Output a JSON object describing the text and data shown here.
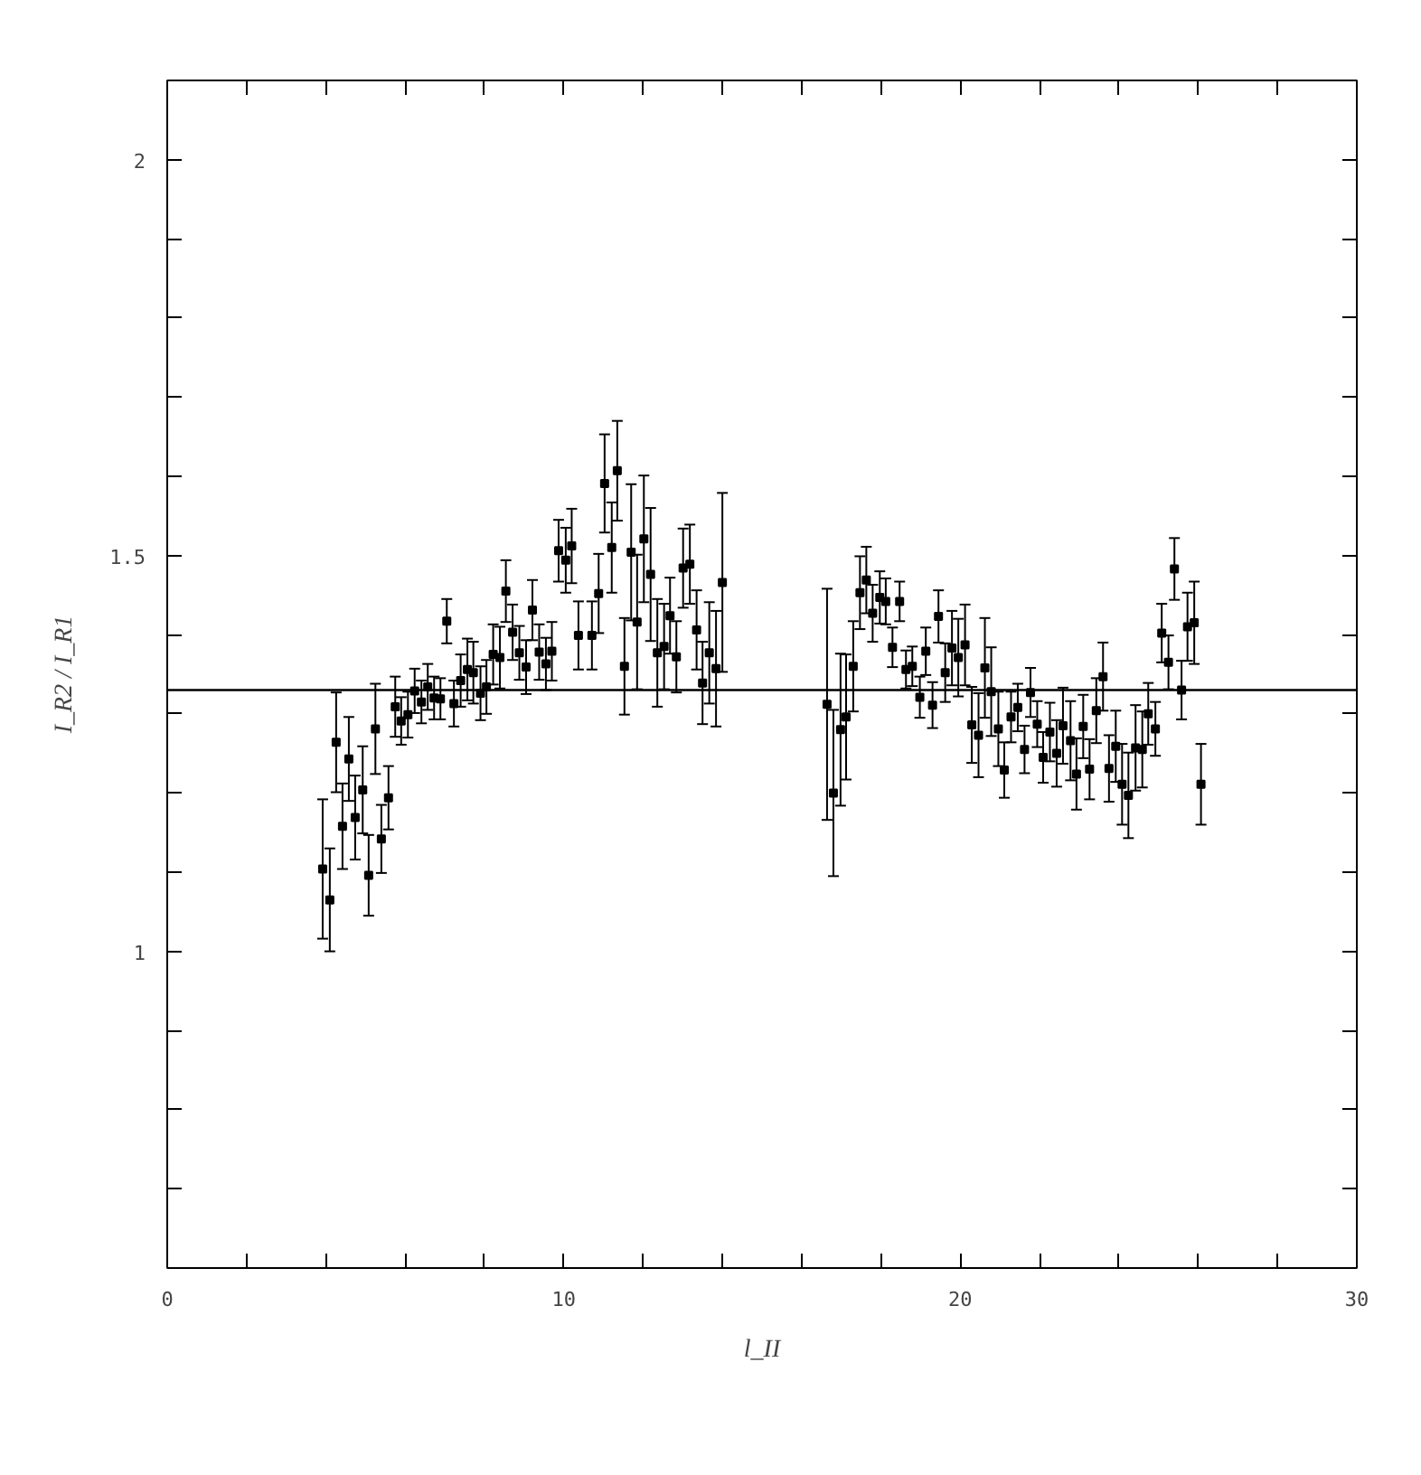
{
  "chart_data": {
    "type": "scatter",
    "xlabel": "l_II",
    "ylabel": "I_R2 / I_R1",
    "marker": "square",
    "grid": false,
    "color": "#000000",
    "xlim": [
      0,
      30
    ],
    "ylim": [
      0.6,
      2.1
    ],
    "xticks": [
      0,
      {
        "value": 2,
        "label": null
      },
      {
        "value": 4,
        "label": null
      },
      {
        "value": 6,
        "label": null
      },
      {
        "value": 8,
        "label": null
      },
      10,
      {
        "value": 12,
        "label": null
      },
      {
        "value": 14,
        "label": null
      },
      {
        "value": 16,
        "label": null
      },
      {
        "value": 18,
        "label": null
      },
      20,
      {
        "value": 22,
        "label": null
      },
      {
        "value": 24,
        "label": null
      },
      {
        "value": 26,
        "label": null
      },
      {
        "value": 28,
        "label": null
      },
      30
    ],
    "yticks": [
      {
        "value": 0.7,
        "label": null
      },
      {
        "value": 0.8,
        "label": null
      },
      {
        "value": 0.9,
        "label": null
      },
      1,
      {
        "value": 1.1,
        "label": null
      },
      {
        "value": 1.2,
        "label": null
      },
      {
        "value": 1.3,
        "label": null
      },
      {
        "value": 1.4,
        "label": null
      },
      1.5,
      {
        "value": 1.6,
        "label": null
      },
      {
        "value": 1.7,
        "label": null
      },
      {
        "value": 1.8,
        "label": null
      },
      {
        "value": 1.9,
        "label": null
      },
      2
    ],
    "ref_lines": [
      {
        "axis": "y",
        "value": 1.33,
        "color": "#000000"
      }
    ],
    "x": [
      3.92,
      4.1,
      4.26,
      4.42,
      4.58,
      4.74,
      4.93,
      5.08,
      5.25,
      5.4,
      5.58,
      5.75,
      5.9,
      6.07,
      6.24,
      6.41,
      6.57,
      6.73,
      6.89,
      7.05,
      7.23,
      7.4,
      7.57,
      7.72,
      7.9,
      8.05,
      8.22,
      8.39,
      8.54,
      8.71,
      8.88,
      9.05,
      9.21,
      9.38,
      9.55,
      9.7,
      9.87,
      10.05,
      10.2,
      10.37,
      10.71,
      10.88,
      11.03,
      11.21,
      11.35,
      11.53,
      11.7,
      11.85,
      12.02,
      12.19,
      12.36,
      12.53,
      12.68,
      12.84,
      13.01,
      13.18,
      13.35,
      13.5,
      13.67,
      13.84,
      14.0,
      16.64,
      16.8,
      16.98,
      17.12,
      17.3,
      17.47,
      17.63,
      17.79,
      17.97,
      18.12,
      18.29,
      18.47,
      18.63,
      18.79,
      18.98,
      19.13,
      19.3,
      19.45,
      19.62,
      19.79,
      19.95,
      20.12,
      20.29,
      20.46,
      20.62,
      20.78,
      20.96,
      21.11,
      21.28,
      21.45,
      21.62,
      21.77,
      21.94,
      22.09,
      22.26,
      22.43,
      22.59,
      22.78,
      22.93,
      23.1,
      23.26,
      23.43,
      23.6,
      23.75,
      23.92,
      24.08,
      24.24,
      24.42,
      24.59,
      24.74,
      24.92,
      25.08,
      25.25,
      25.4,
      25.58,
      25.73,
      25.9,
      26.07
    ],
    "values": [
      1.104,
      1.065,
      1.264,
      1.158,
      1.243,
      1.169,
      1.204,
      1.096,
      1.281,
      1.142,
      1.194,
      1.309,
      1.291,
      1.299,
      1.329,
      1.315,
      1.334,
      1.32,
      1.319,
      1.417,
      1.313,
      1.342,
      1.356,
      1.352,
      1.326,
      1.334,
      1.375,
      1.371,
      1.455,
      1.403,
      1.377,
      1.359,
      1.431,
      1.378,
      1.363,
      1.379,
      1.506,
      1.494,
      1.512,
      1.399,
      1.399,
      1.452,
      1.591,
      1.51,
      1.607,
      1.36,
      1.504,
      1.416,
      1.521,
      1.476,
      1.377,
      1.385,
      1.424,
      1.372,
      1.484,
      1.489,
      1.406,
      1.339,
      1.377,
      1.357,
      1.466,
      1.312,
      1.2,
      1.28,
      1.296,
      1.36,
      1.453,
      1.469,
      1.427,
      1.447,
      1.442,
      1.384,
      1.442,
      1.356,
      1.36,
      1.321,
      1.379,
      1.311,
      1.423,
      1.352,
      1.383,
      1.371,
      1.387,
      1.286,
      1.273,
      1.358,
      1.328,
      1.281,
      1.229,
      1.296,
      1.308,
      1.255,
      1.327,
      1.287,
      1.245,
      1.277,
      1.25,
      1.285,
      1.266,
      1.224,
      1.284,
      1.23,
      1.304,
      1.347,
      1.231,
      1.259,
      1.211,
      1.197,
      1.257,
      1.255,
      1.3,
      1.281,
      1.402,
      1.365,
      1.483,
      1.33,
      1.41,
      1.415,
      1.211
    ],
    "errors": [
      0.088,
      0.065,
      0.063,
      0.054,
      0.053,
      0.053,
      0.055,
      0.051,
      0.057,
      0.043,
      0.04,
      0.038,
      0.03,
      0.029,
      0.028,
      0.027,
      0.029,
      0.027,
      0.026,
      0.028,
      0.029,
      0.033,
      0.039,
      0.039,
      0.034,
      0.034,
      0.038,
      0.039,
      0.039,
      0.035,
      0.034,
      0.034,
      0.038,
      0.035,
      0.033,
      0.037,
      0.039,
      0.041,
      0.047,
      0.043,
      0.043,
      0.05,
      0.062,
      0.057,
      0.063,
      0.061,
      0.086,
      0.085,
      0.08,
      0.084,
      0.068,
      0.054,
      0.048,
      0.045,
      0.05,
      0.05,
      0.05,
      0.052,
      0.064,
      0.073,
      0.113,
      0.146,
      0.105,
      0.096,
      0.079,
      0.057,
      0.046,
      0.042,
      0.036,
      0.033,
      0.029,
      0.025,
      0.025,
      0.024,
      0.025,
      0.026,
      0.03,
      0.029,
      0.033,
      0.037,
      0.047,
      0.049,
      0.051,
      0.048,
      0.053,
      0.063,
      0.056,
      0.047,
      0.035,
      0.032,
      0.03,
      0.03,
      0.031,
      0.029,
      0.032,
      0.037,
      0.042,
      0.048,
      0.05,
      0.045,
      0.04,
      0.038,
      0.041,
      0.043,
      0.042,
      0.045,
      0.051,
      0.054,
      0.054,
      0.048,
      0.039,
      0.034,
      0.037,
      0.034,
      0.039,
      0.037,
      0.043,
      0.052,
      0.051
    ]
  }
}
